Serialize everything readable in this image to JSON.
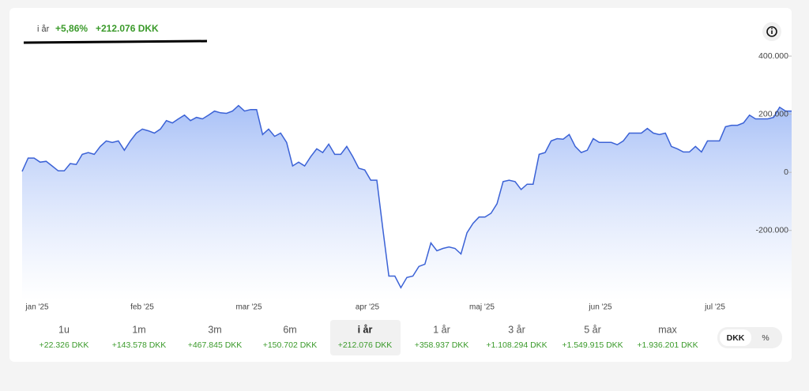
{
  "header": {
    "period": "i år",
    "percent": "+5,86%",
    "amount": "+212.076 DKK"
  },
  "chart_data": {
    "type": "area",
    "color": "#3b62d6",
    "values": [
      3000,
      49000,
      49000,
      35000,
      38000,
      22000,
      5000,
      5000,
      30000,
      27000,
      62000,
      68000,
      62000,
      89000,
      108000,
      103000,
      108000,
      76000,
      108000,
      135000,
      149000,
      143000,
      135000,
      149000,
      178000,
      170000,
      184000,
      197000,
      178000,
      189000,
      184000,
      197000,
      211000,
      205000,
      203000,
      211000,
      230000,
      211000,
      216000,
      216000,
      130000,
      149000,
      124000,
      135000,
      103000,
      22000,
      35000,
      22000,
      54000,
      81000,
      68000,
      97000,
      62000,
      62000,
      89000,
      54000,
      14000,
      8000,
      -27000,
      -27000,
      -195000,
      -357000,
      -357000,
      -397000,
      -362000,
      -357000,
      -324000,
      -316000,
      -243000,
      -270000,
      -262000,
      -257000,
      -262000,
      -281000,
      -208000,
      -176000,
      -154000,
      -154000,
      -141000,
      -108000,
      -32000,
      -27000,
      -32000,
      -59000,
      -41000,
      -41000,
      62000,
      68000,
      108000,
      116000,
      114000,
      130000,
      89000,
      68000,
      76000,
      116000,
      103000,
      103000,
      103000,
      95000,
      108000,
      135000,
      135000,
      135000,
      151000,
      135000,
      130000,
      135000,
      89000,
      81000,
      70000,
      70000,
      89000,
      70000,
      108000,
      108000,
      108000,
      157000,
      162000,
      162000,
      170000,
      197000,
      184000,
      184000,
      184000,
      189000,
      224000,
      211000,
      211000
    ],
    "ylim": [
      -440000,
      430000
    ],
    "yticks": [
      {
        "value": 400000,
        "label": "400.000"
      },
      {
        "value": 200000,
        "label": "200.000"
      },
      0,
      {
        "value": -200000,
        "label": "-200.000"
      }
    ],
    "months": [
      "jan '25",
      "feb '25",
      "mar '25",
      "apr '25",
      "maj '25",
      "jun '25",
      "jul '25"
    ]
  },
  "periods": [
    {
      "label": "1u",
      "value": "+22.326 DKK"
    },
    {
      "label": "1m",
      "value": "+143.578 DKK"
    },
    {
      "label": "3m",
      "value": "+467.845 DKK"
    },
    {
      "label": "6m",
      "value": "+150.702 DKK"
    },
    {
      "label": "i år",
      "value": "+212.076 DKK"
    },
    {
      "label": "1 år",
      "value": "+358.937 DKK"
    },
    {
      "label": "3 år",
      "value": "+1.108.294 DKK"
    },
    {
      "label": "5 år",
      "value": "+1.549.915 DKK"
    },
    {
      "label": "max",
      "value": "+1.936.201 DKK"
    }
  ],
  "toggle": [
    "DKK",
    "%"
  ]
}
